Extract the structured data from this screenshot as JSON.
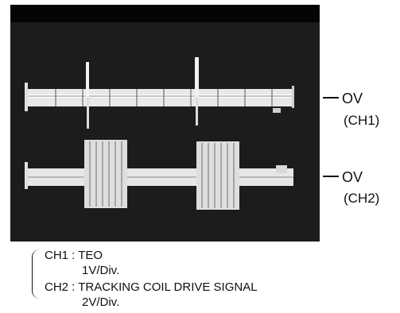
{
  "markers": [
    {
      "level": "OV",
      "channel": "(CH1)"
    },
    {
      "level": "OV",
      "channel": "(CH2)"
    }
  ],
  "legend": {
    "ch1": {
      "label": "CH1 : TEO",
      "scale": "1V/Div."
    },
    "ch2": {
      "label": "CH2 : TRACKING COIL DRIVE SIGNAL",
      "scale": "2V/Div."
    }
  }
}
